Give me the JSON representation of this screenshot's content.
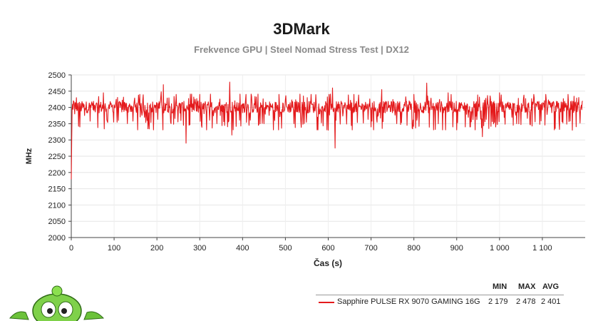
{
  "chart_data": {
    "type": "line",
    "title": "3DMark",
    "subtitle": "Frekvence GPU | Steel Nomad Stress Test | DX12",
    "xlabel": "Čas (s)",
    "ylabel": "MHz",
    "xlim": [
      0,
      1200
    ],
    "ylim": [
      2000,
      2500
    ],
    "x_ticks": [
      0,
      100,
      200,
      300,
      400,
      500,
      600,
      700,
      800,
      900,
      1000,
      1100
    ],
    "x_tick_labels": [
      "0",
      "100",
      "200",
      "300",
      "400",
      "500",
      "600",
      "700",
      "800",
      "900",
      "1 000",
      "1 100"
    ],
    "y_ticks": [
      2000,
      2050,
      2100,
      2150,
      2200,
      2250,
      2300,
      2350,
      2400,
      2450,
      2500
    ],
    "y_tick_labels": [
      "2000",
      "2050",
      "2100",
      "2150",
      "2200",
      "2250",
      "2300",
      "2350",
      "2400",
      "2450",
      "2500"
    ],
    "grid": true,
    "legend_position": "bottom-right",
    "stat_headers": [
      "MIN",
      "MAX",
      "AVG"
    ],
    "series": [
      {
        "name": "Sapphire PULSE RX 9070 GAMING 16G",
        "color": "#e41a1c",
        "min_label": "2 179",
        "max_label": "2 478",
        "avg_label": "2 401",
        "x_start": 0,
        "x_end": 1194,
        "baseline": 2401,
        "points": [
          [
            0,
            2179
          ],
          [
            1,
            2300
          ],
          [
            2,
            2395
          ],
          [
            3,
            2410
          ],
          [
            5,
            2420
          ],
          [
            8,
            2380
          ],
          [
            12,
            2430
          ],
          [
            20,
            2340
          ],
          [
            75,
            2445
          ],
          [
            110,
            2360
          ],
          [
            160,
            2440
          ],
          [
            210,
            2448
          ],
          [
            215,
            2470
          ],
          [
            245,
            2440
          ],
          [
            262,
            2345
          ],
          [
            268,
            2290
          ],
          [
            300,
            2440
          ],
          [
            340,
            2350
          ],
          [
            370,
            2478
          ],
          [
            375,
            2315
          ],
          [
            408,
            2440
          ],
          [
            450,
            2350
          ],
          [
            485,
            2440
          ],
          [
            520,
            2350
          ],
          [
            560,
            2440
          ],
          [
            600,
            2330
          ],
          [
            610,
            2460
          ],
          [
            616,
            2275
          ],
          [
            660,
            2440
          ],
          [
            700,
            2340
          ],
          [
            725,
            2455
          ],
          [
            760,
            2350
          ],
          [
            800,
            2440
          ],
          [
            830,
            2475
          ],
          [
            835,
            2420
          ],
          [
            880,
            2445
          ],
          [
            920,
            2340
          ],
          [
            960,
            2310
          ],
          [
            1000,
            2445
          ],
          [
            1040,
            2350
          ],
          [
            1080,
            2440
          ],
          [
            1130,
            2335
          ],
          [
            1160,
            2440
          ],
          [
            1170,
            2330
          ],
          [
            1194,
            2420
          ]
        ]
      }
    ]
  },
  "mascot": {
    "icon": "green-alien-mascot-icon"
  }
}
